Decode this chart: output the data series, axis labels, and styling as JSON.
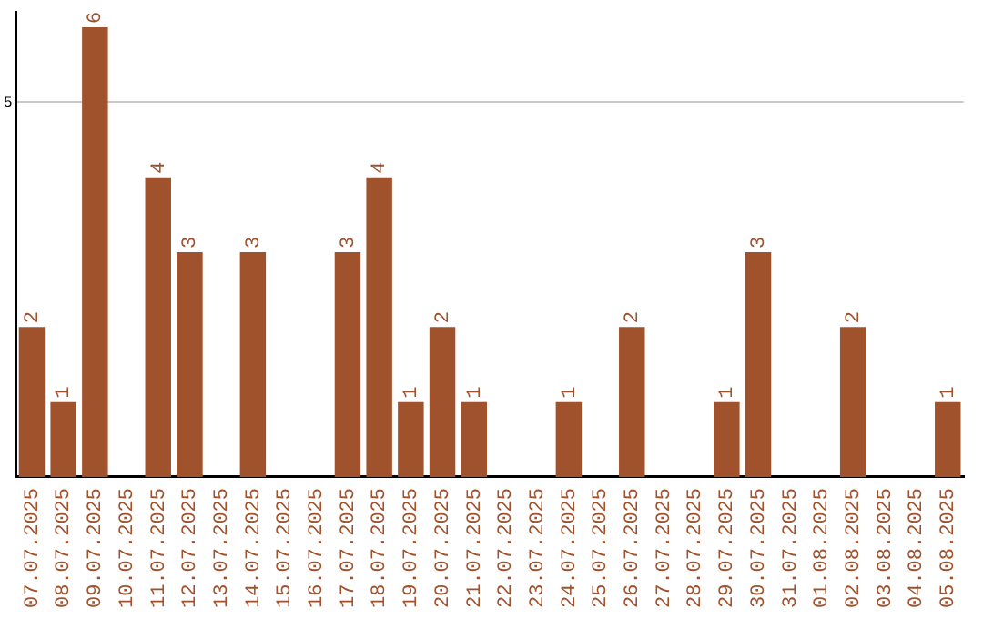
{
  "chart_data": {
    "type": "bar",
    "categories": [
      "07.07.2025",
      "08.07.2025",
      "09.07.2025",
      "10.07.2025",
      "11.07.2025",
      "12.07.2025",
      "13.07.2025",
      "14.07.2025",
      "15.07.2025",
      "16.07.2025",
      "17.07.2025",
      "18.07.2025",
      "19.07.2025",
      "20.07.2025",
      "21.07.2025",
      "22.07.2025",
      "23.07.2025",
      "24.07.2025",
      "25.07.2025",
      "26.07.2025",
      "27.07.2025",
      "28.07.2025",
      "29.07.2025",
      "30.07.2025",
      "31.07.2025",
      "01.08.2025",
      "02.08.2025",
      "03.08.2025",
      "04.08.2025",
      "05.08.2025"
    ],
    "values": [
      2,
      1,
      6,
      0,
      4,
      3,
      0,
      3,
      0,
      0,
      3,
      4,
      1,
      2,
      1,
      0,
      0,
      1,
      0,
      2,
      0,
      0,
      1,
      3,
      0,
      0,
      2,
      0,
      0,
      1
    ],
    "value_labels": [
      "2",
      "1",
      "6",
      null,
      "4",
      "3",
      null,
      "3",
      null,
      null,
      "3",
      "4",
      "1",
      "2",
      "1",
      null,
      null,
      "1",
      null,
      "2",
      null,
      null,
      "1",
      "3",
      null,
      null,
      "2",
      null,
      null,
      "1"
    ],
    "color": "#a0522d",
    "ylim": [
      0,
      6.2
    ],
    "yticks": [
      5
    ],
    "grid": "y",
    "legend": false
  }
}
